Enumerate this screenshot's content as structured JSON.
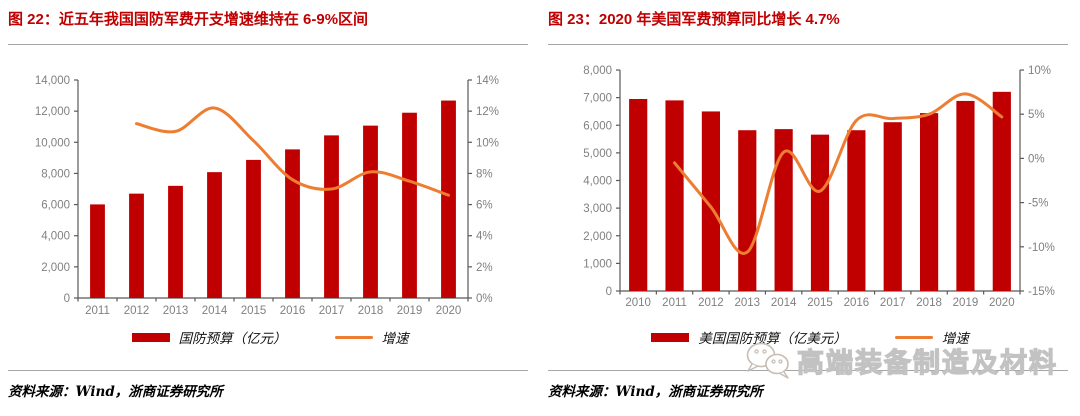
{
  "panels": [
    {
      "title": "图 22：近五年我国国防军费开支增速维持在 6-9%区间",
      "legend": [
        {
          "label": "国防预算（亿元）",
          "swatch": "bar"
        },
        {
          "label": "增速",
          "swatch": "line"
        }
      ],
      "source": "资料来源：Wind，浙商证券研究所"
    },
    {
      "title": "图 23：2020 年美国军费预算同比增长 4.7%",
      "legend": [
        {
          "label": "美国国防预算（亿美元）",
          "swatch": "bar"
        },
        {
          "label": "增速",
          "swatch": "line"
        }
      ],
      "source": "资料来源：Wind，浙商证券研究所"
    }
  ],
  "watermark": {
    "text": "高端装备制造及材料",
    "icon": "wechat-chat-bubbles-icon"
  },
  "colors": {
    "bar": "#C00000",
    "line": "#ED7D31",
    "title": "#C00000",
    "axis_text": "#808080",
    "axis_line": "#595959",
    "separator": "#A6A6A6",
    "source_text": "#000000",
    "watermark": "#C2C2C2"
  },
  "chart_data": [
    {
      "type": "bar",
      "subtype": "bar+line combo, dual axis",
      "title": "近五年我国国防军费开支增速维持在 6-9%区间",
      "categories": [
        "2011",
        "2012",
        "2013",
        "2014",
        "2015",
        "2016",
        "2017",
        "2018",
        "2019",
        "2020"
      ],
      "series": [
        {
          "name": "国防预算（亿元）",
          "type": "bar",
          "axis": "left",
          "color": "#C00000",
          "values": [
            6011,
            6702,
            7202,
            8082,
            8869,
            9544,
            10444,
            11070,
            11899,
            12680
          ]
        },
        {
          "name": "增速",
          "type": "line",
          "axis": "right",
          "color": "#ED7D31",
          "values": [
            null,
            11.2,
            10.7,
            12.2,
            10.1,
            7.6,
            7.0,
            8.1,
            7.5,
            6.6
          ]
        }
      ],
      "left_axis": {
        "min": 0,
        "max": 14000,
        "tick_labels": [
          "0",
          "2,000",
          "4,000",
          "6,000",
          "8,000",
          "10,000",
          "12,000",
          "14,000"
        ]
      },
      "right_axis": {
        "min": 0,
        "max": 14,
        "tick_labels": [
          "0%",
          "2%",
          "4%",
          "6%",
          "8%",
          "10%",
          "12%",
          "14%"
        ]
      },
      "grid": false,
      "legend_position": "bottom",
      "bar_width_ratio": 0.38
    },
    {
      "type": "bar",
      "subtype": "bar+line combo, dual axis",
      "title": "2020 年美国军费预算同比增长 4.7%",
      "categories": [
        "2010",
        "2011",
        "2012",
        "2013",
        "2014",
        "2015",
        "2016",
        "2017",
        "2018",
        "2019",
        "2020"
      ],
      "series": [
        {
          "name": "美国国防预算（亿美元）",
          "type": "bar",
          "axis": "left",
          "color": "#C00000",
          "values": [
            6950,
            6900,
            6500,
            5820,
            5860,
            5660,
            5820,
            6110,
            6440,
            6880,
            7210
          ]
        },
        {
          "name": "增速",
          "type": "line",
          "axis": "right",
          "color": "#ED7D31",
          "values": [
            null,
            -0.5,
            -5.5,
            -10.6,
            0.7,
            -3.7,
            4.3,
            4.5,
            5.0,
            7.3,
            4.7
          ]
        }
      ],
      "left_axis": {
        "min": 0,
        "max": 8000,
        "tick_labels": [
          "0",
          "1,000",
          "2,000",
          "3,000",
          "4,000",
          "5,000",
          "6,000",
          "7,000",
          "8,000"
        ]
      },
      "right_axis": {
        "min": -15,
        "max": 10,
        "tick_labels": [
          "-15%",
          "-10%",
          "-5%",
          "0%",
          "5%",
          "10%"
        ]
      },
      "grid": false,
      "legend_position": "bottom",
      "bar_width_ratio": 0.5
    }
  ]
}
